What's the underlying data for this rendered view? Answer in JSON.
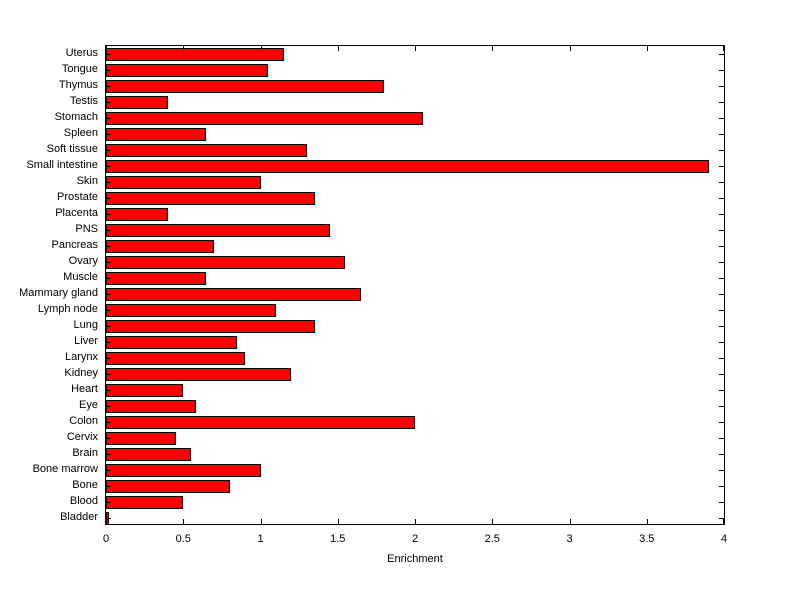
{
  "chart_data": {
    "type": "bar",
    "orientation": "horizontal",
    "title": "",
    "xlabel": "Enrichment",
    "ylabel": "",
    "xlim": [
      0,
      4
    ],
    "xtick_labels": [
      "0",
      "0.5",
      "1",
      "1.5",
      "2",
      "2.5",
      "3",
      "3.5",
      "4"
    ],
    "categories": [
      "Uterus",
      "Tongue",
      "Thymus",
      "Testis",
      "Stomach",
      "Spleen",
      "Soft tissue",
      "Small intestine",
      "Skin",
      "Prostate",
      "Placenta",
      "PNS",
      "Pancreas",
      "Ovary",
      "Muscle",
      "Mammary gland",
      "Lymph node",
      "Lung",
      "Liver",
      "Larynx",
      "Kidney",
      "Heart",
      "Eye",
      "Colon",
      "Cervix",
      "Brain",
      "Bone marrow",
      "Bone",
      "Blood",
      "Bladder"
    ],
    "values": [
      1.15,
      1.05,
      1.8,
      0.4,
      2.05,
      0.65,
      1.3,
      3.9,
      1.0,
      1.35,
      0.4,
      1.45,
      0.7,
      1.55,
      0.65,
      1.65,
      1.1,
      1.35,
      0.85,
      0.9,
      1.2,
      0.5,
      0.58,
      2.0,
      0.45,
      0.55,
      1.0,
      0.8,
      0.5,
      0.02
    ],
    "bar_color": "#ff0000",
    "bar_edge_color": "#000000",
    "grid": false,
    "legend_position": "none"
  }
}
